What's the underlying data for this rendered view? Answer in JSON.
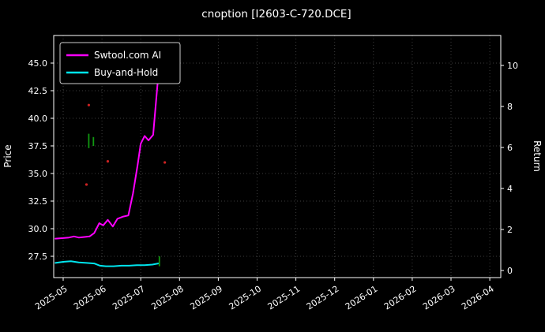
{
  "chart_data": {
    "type": "line",
    "title": "cnoption [I2603-C-720.DCE]",
    "ylabel_left": "Price",
    "ylabel_right": "Return",
    "x_unit": "months offset from 2025-05 tick",
    "x_ticks": [
      "2025-05",
      "2025-06",
      "2025-07",
      "2025-08",
      "2025-09",
      "2025-10",
      "2025-11",
      "2025-12",
      "2026-01",
      "2026-02",
      "2026-03",
      "2026-04"
    ],
    "y_ticks_left": [
      "27.5",
      "30.0",
      "32.5",
      "35.0",
      "37.5",
      "40.0",
      "42.5",
      "45.0"
    ],
    "y_ticks_left_values": [
      27.5,
      30.0,
      32.5,
      35.0,
      37.5,
      40.0,
      42.5,
      45.0
    ],
    "y_ticks_right": [
      "0",
      "2",
      "4",
      "6",
      "8",
      "10"
    ],
    "y_ticks_right_values": [
      0,
      2,
      4,
      6,
      8,
      10
    ],
    "ylim_left": [
      25.6,
      47.5
    ],
    "ylim_right": [
      -0.7,
      11.1
    ],
    "background": "#000000",
    "grid": "dotted",
    "grid_color": "#3c3c3c",
    "spine_color": "#ffffff",
    "legend_position": "upper-left",
    "series": [
      {
        "name": "Swtool.com AI",
        "color": "#ff00ff",
        "points": [
          [
            -0.2,
            29.1
          ],
          [
            0.0,
            29.15
          ],
          [
            0.15,
            29.2
          ],
          [
            0.28,
            29.3
          ],
          [
            0.4,
            29.2
          ],
          [
            0.55,
            29.25
          ],
          [
            0.68,
            29.3
          ],
          [
            0.8,
            29.6
          ],
          [
            0.93,
            30.5
          ],
          [
            1.03,
            30.3
          ],
          [
            1.15,
            30.8
          ],
          [
            1.28,
            30.2
          ],
          [
            1.4,
            30.9
          ],
          [
            1.55,
            31.1
          ],
          [
            1.68,
            31.2
          ],
          [
            1.8,
            33.2
          ],
          [
            1.92,
            35.8
          ],
          [
            2.0,
            37.7
          ],
          [
            2.1,
            38.4
          ],
          [
            2.2,
            38.0
          ],
          [
            2.32,
            38.5
          ],
          [
            2.45,
            43.8
          ],
          [
            2.52,
            44.0
          ]
        ]
      },
      {
        "name": "Buy-and-Hold",
        "color": "#00e5ee",
        "points": [
          [
            -0.2,
            26.9
          ],
          [
            0.0,
            27.0
          ],
          [
            0.2,
            27.05
          ],
          [
            0.4,
            26.95
          ],
          [
            0.6,
            26.9
          ],
          [
            0.8,
            26.85
          ],
          [
            0.95,
            26.65
          ],
          [
            1.1,
            26.6
          ],
          [
            1.3,
            26.6
          ],
          [
            1.5,
            26.65
          ],
          [
            1.7,
            26.65
          ],
          [
            1.9,
            26.7
          ],
          [
            2.1,
            26.7
          ],
          [
            2.3,
            26.75
          ],
          [
            2.45,
            26.85
          ]
        ]
      }
    ],
    "markers": [
      {
        "type": "dot",
        "color": "#cc2222",
        "x": 0.66,
        "price": 41.2
      },
      {
        "type": "dot",
        "color": "#cc2222",
        "x": 0.6,
        "price": 34.0
      },
      {
        "type": "dot",
        "color": "#cc2222",
        "x": 1.15,
        "price": 36.1
      },
      {
        "type": "dot",
        "color": "#cc2222",
        "x": 2.62,
        "price": 36.0
      },
      {
        "type": "vline",
        "color": "#119911",
        "x": 0.66,
        "p1": 37.3,
        "p2": 38.6
      },
      {
        "type": "vline",
        "color": "#119911",
        "x": 0.78,
        "p1": 37.5,
        "p2": 38.3
      },
      {
        "type": "vline",
        "color": "#119911",
        "x": 2.48,
        "p1": 26.6,
        "p2": 27.5
      }
    ]
  }
}
